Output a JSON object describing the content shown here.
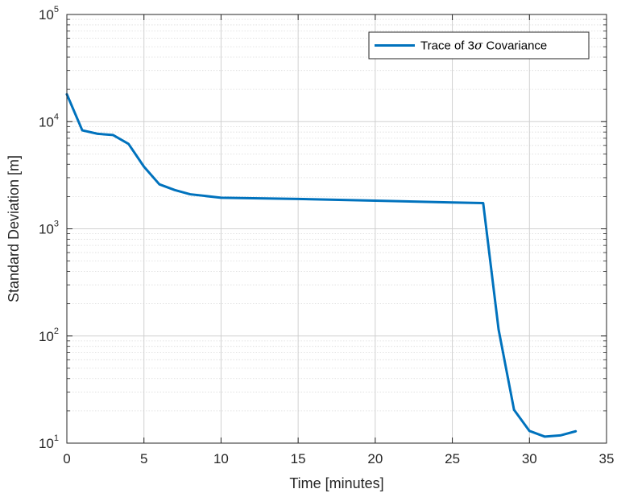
{
  "chart_data": {
    "type": "line",
    "scale": {
      "y": "log"
    },
    "xlabel": "Time [minutes]",
    "ylabel": "Standard Deviation [m]",
    "xlim": [
      0,
      35
    ],
    "ylim": [
      10,
      100000
    ],
    "x_ticks": [
      0,
      5,
      10,
      15,
      20,
      25,
      30,
      35
    ],
    "x_tick_labels": [
      "0",
      "5",
      "10",
      "15",
      "20",
      "25",
      "30",
      "35"
    ],
    "y_ticks": [
      10,
      100,
      1000,
      10000,
      100000
    ],
    "y_tick_labels": [
      {
        "base": "10",
        "exp": "1"
      },
      {
        "base": "10",
        "exp": "2"
      },
      {
        "base": "10",
        "exp": "3"
      },
      {
        "base": "10",
        "exp": "4"
      },
      {
        "base": "10",
        "exp": "5"
      }
    ],
    "grid": true,
    "minor_grid_y": true,
    "legend": {
      "placement": "top-right",
      "entries": [
        {
          "prefix": "Trace of 3",
          "symbol": "σ",
          "suffix": " Covariance"
        }
      ]
    },
    "series": [
      {
        "name": "Trace of 3σ Covariance",
        "color": "#0072BD",
        "x": [
          0,
          1,
          2,
          3,
          4,
          5,
          6,
          7,
          8,
          10,
          15,
          20,
          25,
          27,
          28,
          29,
          30,
          31,
          32,
          33
        ],
        "y": [
          18000,
          8300,
          7700,
          7500,
          6200,
          3800,
          2600,
          2300,
          2100,
          1950,
          1900,
          1830,
          1760,
          1740,
          115,
          20.5,
          13,
          11.5,
          11.8,
          12.9
        ]
      }
    ]
  }
}
